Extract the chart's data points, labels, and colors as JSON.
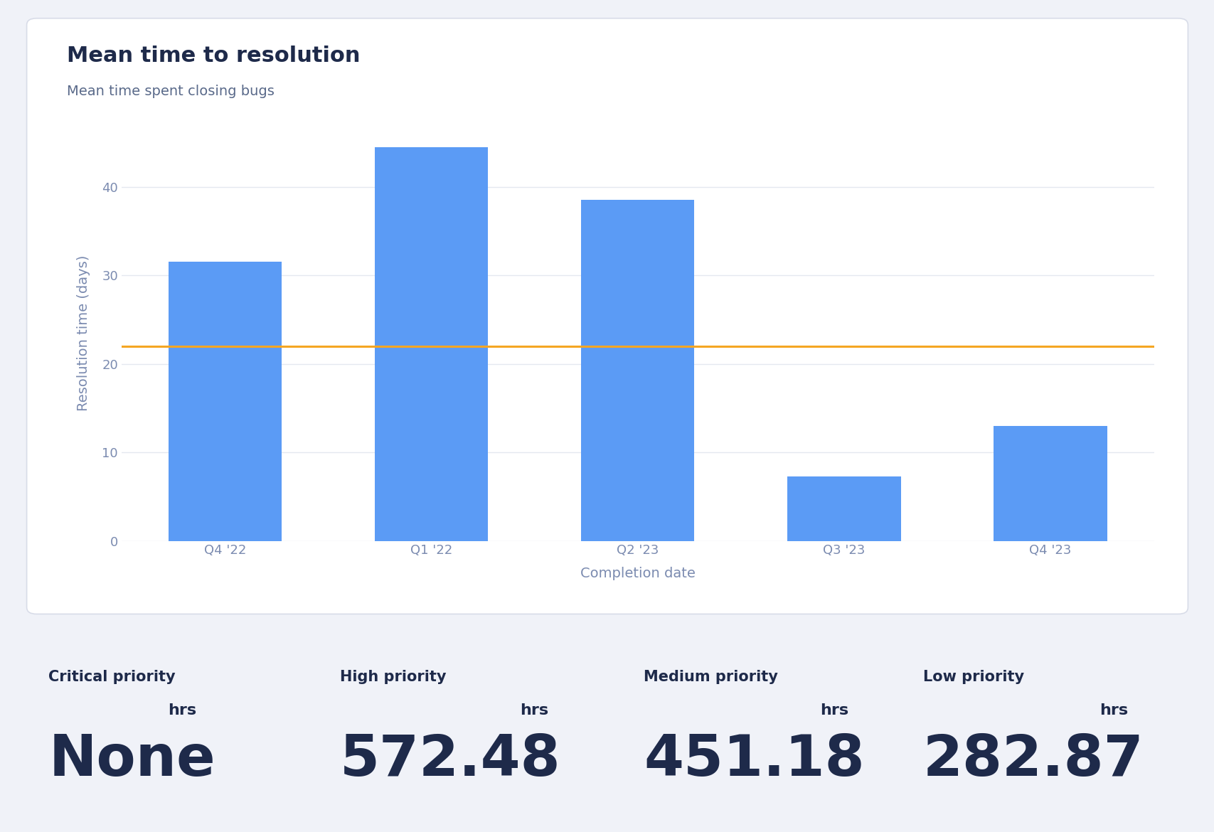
{
  "title": "Mean time to resolution",
  "subtitle": "Mean time spent closing bugs",
  "categories": [
    "Q4 '22",
    "Q1 '22",
    "Q2 '23",
    "Q3 '23",
    "Q4 '23"
  ],
  "bar_values": [
    31.5,
    44.5,
    38.5,
    7.3,
    13.0
  ],
  "bar_color": "#5B9BF5",
  "average_line": 22.0,
  "average_line_color": "#F5A623",
  "ylabel": "Resolution time (days)",
  "xlabel": "Completion date",
  "ylim": [
    0,
    47
  ],
  "yticks": [
    0,
    10,
    20,
    30,
    40
  ],
  "title_color": "#1E2A4A",
  "subtitle_color": "#5A6A8A",
  "axis_label_color": "#7B8BB0",
  "tick_color": "#7B8BB0",
  "grid_color": "#E4E8F0",
  "background_color": "#FFFFFF",
  "priority_labels": [
    "Critical priority",
    "High priority",
    "Medium priority",
    "Low priority"
  ],
  "priority_values": [
    "None",
    "572.48",
    "451.18",
    "282.87"
  ],
  "priority_label_color": "#1E2A4A",
  "priority_value_color": "#1E2A4A",
  "fig_bg": "#F0F2F8",
  "card_edge_color": "#D8DCE8"
}
